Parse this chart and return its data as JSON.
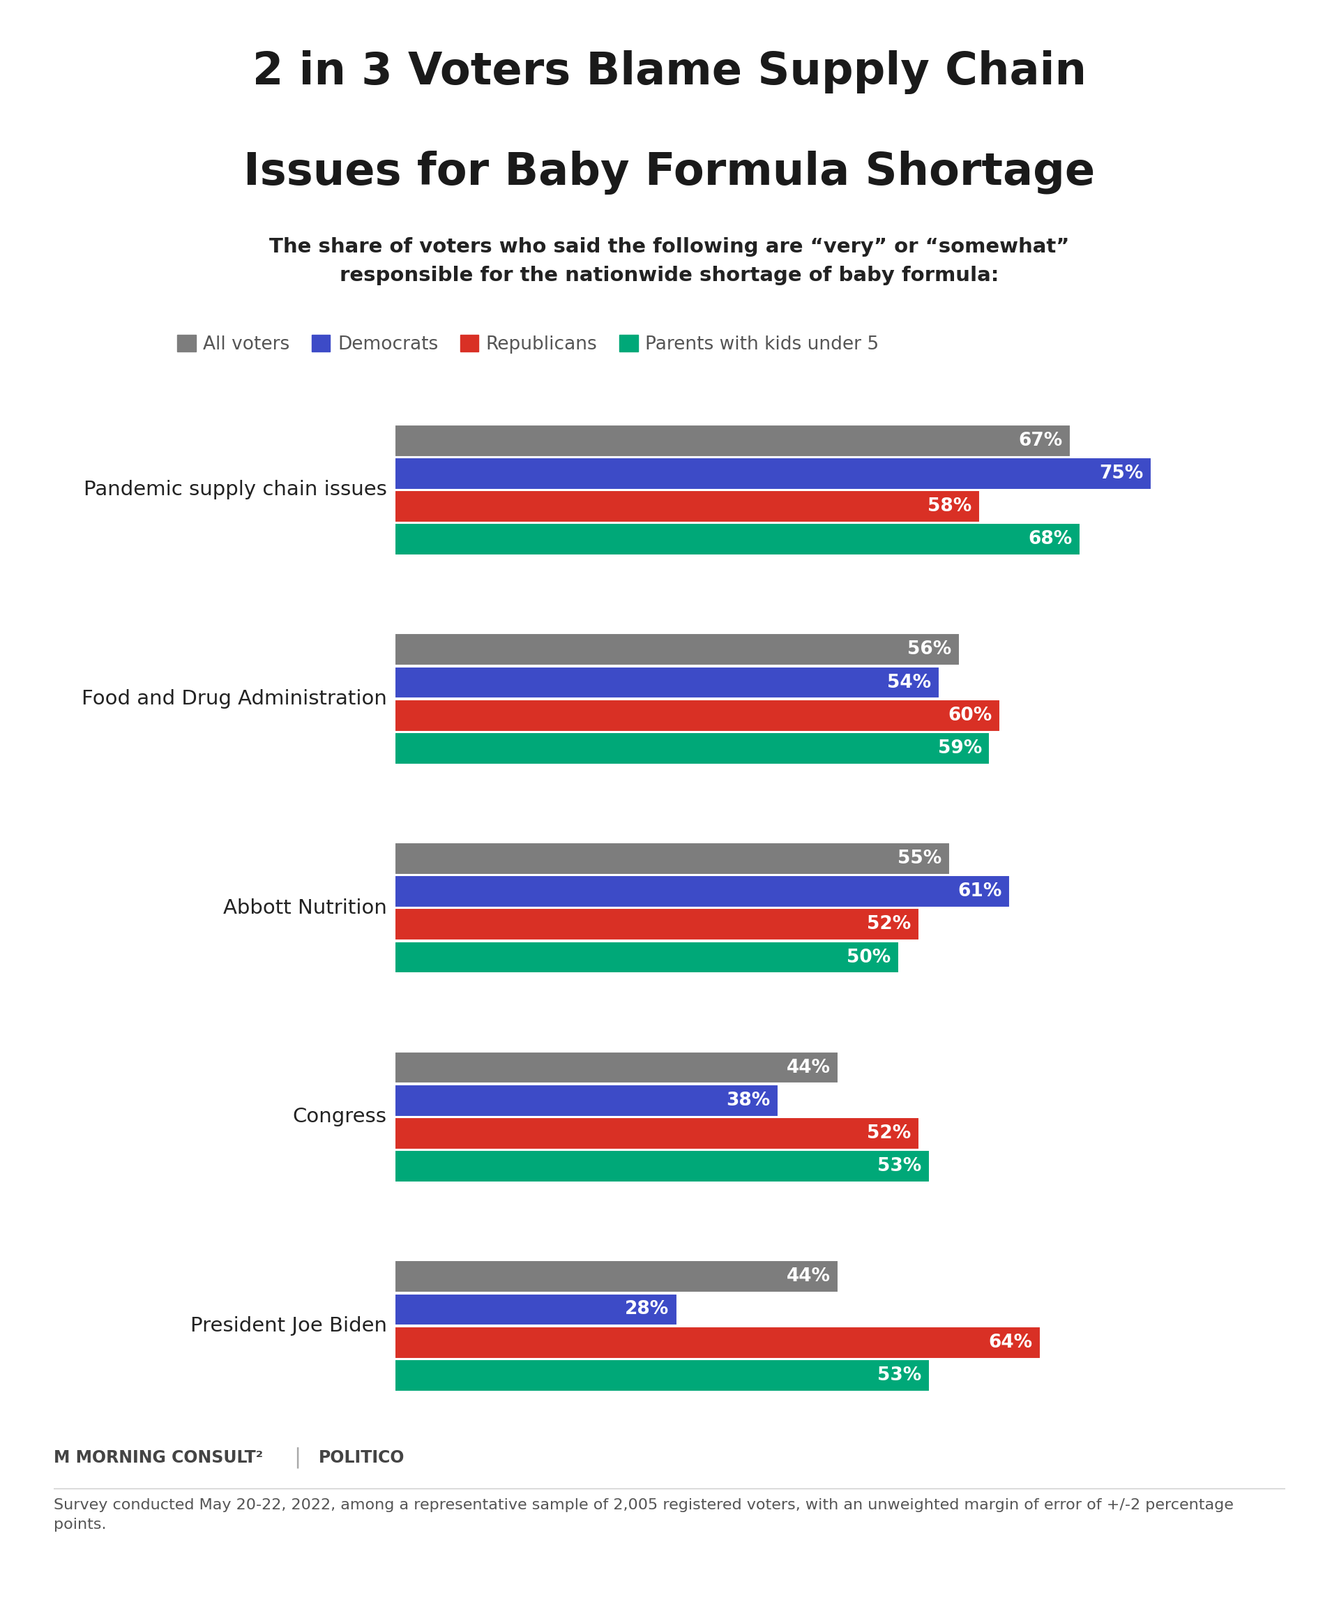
{
  "title_line1": "2 in 3 Voters Blame Supply Chain",
  "title_line2": "Issues for Baby Formula Shortage",
  "subtitle": "The share of voters who said the following are “very” or “somewhat”\nresponsible for the nationwide shortage of baby formula:",
  "categories": [
    "Pandemic supply chain issues",
    "Food and Drug Administration",
    "Abbott Nutrition",
    "Congress",
    "President Joe Biden"
  ],
  "series": [
    {
      "label": "All voters",
      "color": "#7d7d7d",
      "values": [
        67,
        56,
        55,
        44,
        44
      ]
    },
    {
      "label": "Democrats",
      "color": "#3d4bc7",
      "values": [
        75,
        54,
        61,
        38,
        28
      ]
    },
    {
      "label": "Republicans",
      "color": "#d93025",
      "values": [
        58,
        60,
        52,
        52,
        64
      ]
    },
    {
      "label": "Parents with kids under 5",
      "color": "#00a878",
      "values": [
        68,
        59,
        50,
        53,
        53
      ]
    }
  ],
  "top_bar_color": "#00BCD4",
  "background_color": "#FFFFFF",
  "footnote": "Survey conducted May 20-22, 2022, among a representative sample of 2,005 registered voters, with an unweighted margin of error of +/-2 percentage\npoints.",
  "xlim_max": 85,
  "title_fontsize": 46,
  "subtitle_fontsize": 21,
  "legend_fontsize": 19,
  "value_fontsize": 19,
  "category_fontsize": 21,
  "footnote_fontsize": 16,
  "brand_fontsize": 17
}
